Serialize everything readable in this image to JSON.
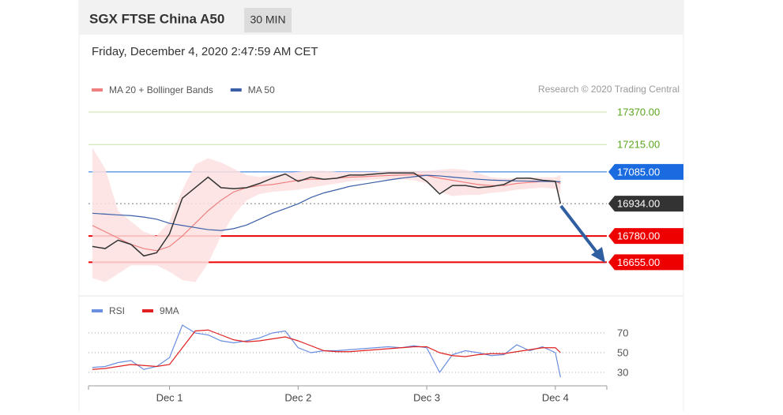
{
  "header": {
    "title": "SGX FTSE China A50",
    "interval": "30 MIN",
    "timestamp": "Friday, December 4, 2020 2:47:59 AM CET"
  },
  "chart_data": [
    {
      "type": "line",
      "credit": "Research © 2020 Trading Central",
      "xlim": [
        0.37,
        4.4
      ],
      "ylim": [
        16600,
        17400
      ],
      "x": [
        0.4,
        0.5,
        0.6,
        0.7,
        0.8,
        0.9,
        1.0,
        1.1,
        1.2,
        1.3,
        1.4,
        1.5,
        1.6,
        1.7,
        1.8,
        1.9,
        2.0,
        2.1,
        2.2,
        2.3,
        2.4,
        2.5,
        2.6,
        2.7,
        2.8,
        2.9,
        3.0,
        3.1,
        3.2,
        3.3,
        3.4,
        3.5,
        3.6,
        3.7,
        3.8,
        3.9,
        4.0,
        4.04
      ],
      "series": [
        {
          "name": "MA 20 + Bollinger Bands",
          "color": "#f08080",
          "band_color": "#fde0e0",
          "values": [
            16830,
            16800,
            16770,
            16740,
            16720,
            16710,
            16730,
            16780,
            16840,
            16900,
            16950,
            16990,
            17010,
            17020,
            17025,
            17035,
            17045,
            17050,
            17050,
            17055,
            17060,
            17062,
            17065,
            17068,
            17070,
            17072,
            17068,
            17055,
            17045,
            17035,
            17025,
            17020,
            17020,
            17030,
            17035,
            17040,
            17040,
            17030
          ],
          "upper": [
            17200,
            17100,
            16900,
            16850,
            16800,
            16780,
            16850,
            17000,
            17120,
            17150,
            17130,
            17100,
            17070,
            17060,
            17070,
            17080,
            17085,
            17090,
            17090,
            17085,
            17085,
            17085,
            17085,
            17090,
            17090,
            17090,
            17090,
            17095,
            17100,
            17095,
            17080,
            17060,
            17055,
            17055,
            17060,
            17060,
            17060,
            17070
          ],
          "lower": [
            16580,
            16560,
            16600,
            16640,
            16640,
            16640,
            16610,
            16570,
            16560,
            16650,
            16780,
            16880,
            16950,
            16980,
            16990,
            16995,
            17000,
            17010,
            17020,
            17030,
            17040,
            17045,
            17050,
            17050,
            17050,
            17045,
            17030,
            16990,
            16970,
            16975,
            16975,
            16985,
            16990,
            17000,
            17005,
            17010,
            17005,
            16980
          ]
        },
        {
          "name": "MA 50",
          "color": "#3a5fa8",
          "values": [
            16888,
            16884,
            16880,
            16877,
            16870,
            16860,
            16840,
            16830,
            16820,
            16810,
            16806,
            16815,
            16832,
            16860,
            16888,
            16910,
            16933,
            16963,
            16985,
            17000,
            17016,
            17026,
            17036,
            17046,
            17055,
            17062,
            17069,
            17066,
            17060,
            17055,
            17050,
            17046,
            17044,
            17042,
            17041,
            17040,
            17039,
            17038
          ]
        },
        {
          "color": "#333333",
          "values": [
            16730,
            16720,
            16760,
            16740,
            16685,
            16700,
            16790,
            16960,
            17010,
            17060,
            17010,
            17005,
            17010,
            17030,
            17055,
            17075,
            17040,
            17060,
            17050,
            17055,
            17070,
            17070,
            17075,
            17080,
            17080,
            17080,
            17040,
            16980,
            17020,
            17020,
            17010,
            17015,
            17025,
            17055,
            17055,
            17045,
            17040,
            16934
          ]
        }
      ],
      "levels": [
        {
          "value": 17370,
          "label": "17370.00",
          "color": "#5aa61c",
          "line_color": "#c8e3a8",
          "tag": false,
          "dotted": false
        },
        {
          "value": 17215,
          "label": "17215.00",
          "color": "#5aa61c",
          "line_color": "#c8e3a8",
          "tag": false,
          "dotted": false
        },
        {
          "value": 17085,
          "label": "17085.00",
          "color": "#1a6be0",
          "line_color": "#1a6be0",
          "tag": true,
          "dotted": false
        },
        {
          "value": 16934,
          "label": "16934.00",
          "color": "#333333",
          "line_color": "#777777",
          "tag": true,
          "dotted": true
        },
        {
          "value": 16780,
          "label": "16780.00",
          "color": "#ee0000",
          "line_color": "#ee0000",
          "tag": true,
          "dotted": false
        },
        {
          "value": 16655,
          "label": "16655.00",
          "color": "#ee0000",
          "line_color": "#ee0000",
          "tag": true,
          "dotted": false
        }
      ]
    },
    {
      "type": "line",
      "xlim": [
        0.37,
        4.4
      ],
      "ylim": [
        20,
        80
      ],
      "yticks": [
        30,
        50,
        70
      ],
      "xticks": [
        {
          "value": 1,
          "label": "Dec 1"
        },
        {
          "value": 2,
          "label": "Dec 2"
        },
        {
          "value": 3,
          "label": "Dec 3"
        },
        {
          "value": 4,
          "label": "Dec 4"
        }
      ],
      "x": [
        0.4,
        0.5,
        0.6,
        0.7,
        0.8,
        0.9,
        1.0,
        1.1,
        1.2,
        1.3,
        1.4,
        1.5,
        1.6,
        1.7,
        1.8,
        1.9,
        2.0,
        2.1,
        2.2,
        2.3,
        2.4,
        2.5,
        2.6,
        2.7,
        2.8,
        2.9,
        3.0,
        3.1,
        3.2,
        3.3,
        3.4,
        3.5,
        3.6,
        3.7,
        3.8,
        3.9,
        4.0,
        4.04
      ],
      "series": [
        {
          "name": "RSI",
          "color": "#6a8ee0",
          "values": [
            35,
            36,
            40,
            42,
            33,
            36,
            45,
            78,
            70,
            68,
            62,
            60,
            62,
            65,
            70,
            72,
            55,
            50,
            52,
            52,
            53,
            54,
            55,
            56,
            55,
            57,
            55,
            30,
            48,
            52,
            50,
            47,
            48,
            58,
            52,
            56,
            50,
            25
          ]
        },
        {
          "name": "9MA",
          "color": "#e02020",
          "values": [
            33,
            34,
            36,
            38,
            37,
            36,
            38,
            55,
            72,
            73,
            68,
            63,
            61,
            62,
            64,
            66,
            62,
            57,
            52,
            51,
            51,
            52,
            53,
            54,
            55,
            56,
            56,
            50,
            47,
            46,
            48,
            49,
            49,
            51,
            53,
            55,
            55,
            50
          ]
        }
      ]
    }
  ]
}
